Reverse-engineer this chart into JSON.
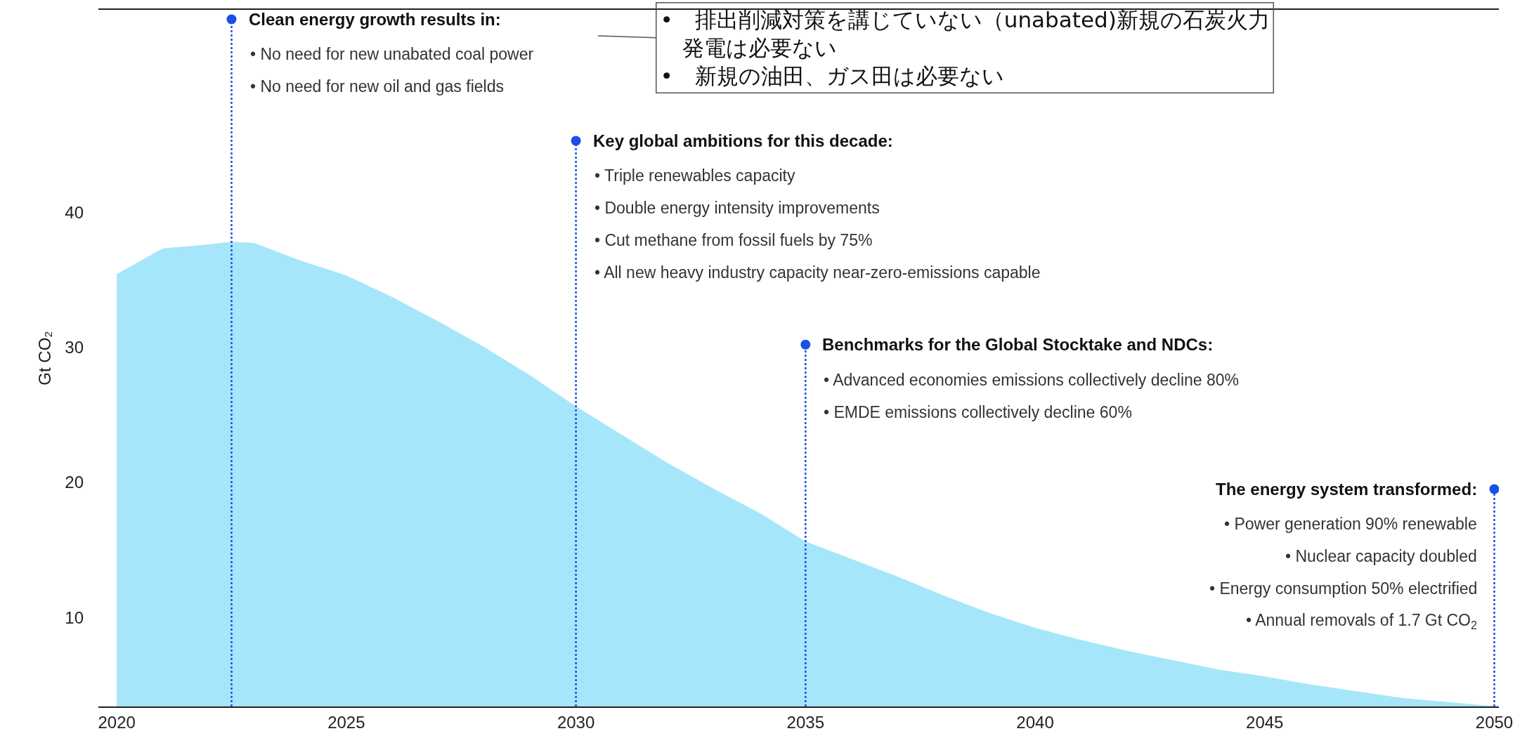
{
  "chart_data": {
    "type": "area",
    "ylabel": "Gt CO₂",
    "x": [
      2020,
      2021,
      2022,
      2022.5,
      2023,
      2024,
      2025,
      2026,
      2027,
      2028,
      2029,
      2030,
      2031,
      2032,
      2033,
      2034,
      2035,
      2036,
      2037,
      2038,
      2039,
      2040,
      2041,
      2042,
      2043,
      2044,
      2045,
      2046,
      2047,
      2048,
      2049,
      2050
    ],
    "values": [
      35.4,
      37.3,
      37.6,
      37.8,
      37.7,
      36.4,
      35.3,
      33.7,
      31.9,
      30.0,
      27.9,
      25.6,
      23.5,
      21.4,
      19.5,
      17.7,
      15.6,
      14.3,
      13.0,
      11.6,
      10.3,
      9.2,
      8.3,
      7.5,
      6.8,
      6.1,
      5.6,
      5.0,
      4.5,
      4.0,
      3.7,
      3.4
    ],
    "color": "#a6e6fb",
    "xlim": [
      2019.6,
      2050.1
    ],
    "ylim": [
      3.4,
      55
    ],
    "xticks": [
      2020,
      2025,
      2030,
      2035,
      2040,
      2045,
      2050
    ],
    "yticks": [
      10,
      20,
      30,
      40
    ],
    "legend": false,
    "ref_lines": [
      {
        "axis": "x",
        "value": 2022.5,
        "color": "#1a4fe8",
        "line_style": "dotted"
      },
      {
        "axis": "x",
        "value": 2030,
        "color": "#1a4fe8",
        "line_style": "dotted"
      },
      {
        "axis": "x",
        "value": 2035,
        "color": "#1a4fe8",
        "line_style": "dotted"
      },
      {
        "axis": "x",
        "value": 2050,
        "color": "#1a4fe8",
        "line_style": "dotted"
      }
    ],
    "annotations": [
      {
        "text": "Clean energy growth results in:\n• No need for new unabated coal power\n• No need for new oil and gas fields",
        "x": 2022.5,
        "y": 54.3
      },
      {
        "text": "Key global ambitions for this decade:\n• Triple renewables capacity\n• Double energy intensity improvements\n• Cut methane from fossil fuels by 75%\n• All new heavy industry capacity near-zero-emissions capable",
        "x": 2030,
        "y": 45.3
      },
      {
        "text": "Benchmarks for the Global Stocktake and NDCs:\n• Advanced economies emissions collectively decline 80%\n• EMDE emissions collectively decline 60%",
        "x": 2035,
        "y": 30.2
      },
      {
        "text": "The energy system transformed:\n• Power generation 90% renewable\n• Nuclear capacity doubled\n• Energy consumption 50% electrified\n• Annual removals of 1.7 Gt CO$_{2}$",
        "x": 2050,
        "y": 19.5
      },
      "•　排出削減対策を講じていない（unabated)新規の石炭火力発電は必要ない\n•　新規の油田、ガス田は必要ない"
    ]
  }
}
